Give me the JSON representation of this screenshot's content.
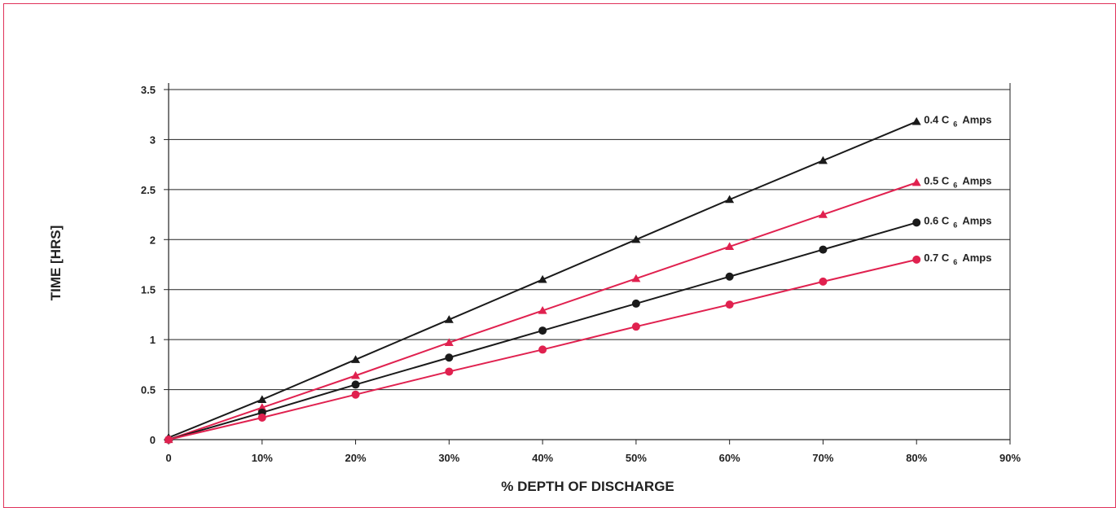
{
  "chart_data": {
    "type": "line",
    "title": "",
    "xlabel": "% DEPTH OF DISCHARGE",
    "ylabel": "TIME [HRS]",
    "x_ticks": [
      "0",
      "10%",
      "20%",
      "30%",
      "40%",
      "50%",
      "60%",
      "70%",
      "80%",
      "90%"
    ],
    "x_tick_values": [
      0,
      10,
      20,
      30,
      40,
      50,
      60,
      70,
      80,
      90
    ],
    "y_ticks": [
      "0",
      "0.5",
      "1",
      "1.5",
      "2",
      "2.5",
      "3",
      "3.5"
    ],
    "y_tick_values": [
      0,
      0.5,
      1,
      1.5,
      2,
      2.5,
      3,
      3.5
    ],
    "xlim": [
      0,
      90
    ],
    "ylim": [
      0,
      3.5
    ],
    "grid": "horizontal",
    "x": [
      0,
      10,
      20,
      30,
      40,
      50,
      60,
      70,
      80
    ],
    "series": [
      {
        "name": "0.4 C 6 Amps",
        "label_main": "0.4 C",
        "label_sub": "6",
        "label_tail": "Amps",
        "color": "#1a1a1a",
        "marker": "triangle",
        "values": [
          0.02,
          0.4,
          0.8,
          1.2,
          1.6,
          2.0,
          2.4,
          2.79,
          3.18
        ]
      },
      {
        "name": "0.5 C 6 Amps",
        "label_main": "0.5 C",
        "label_sub": "6",
        "label_tail": "Amps",
        "color": "#e0214f",
        "marker": "triangle",
        "values": [
          0.0,
          0.32,
          0.64,
          0.97,
          1.29,
          1.61,
          1.93,
          2.25,
          2.57
        ]
      },
      {
        "name": "0.6 C 6 Amps",
        "label_main": "0.6 C",
        "label_sub": "6",
        "label_tail": "Amps",
        "color": "#1a1a1a",
        "marker": "circle",
        "values": [
          0.0,
          0.27,
          0.55,
          0.82,
          1.09,
          1.36,
          1.63,
          1.9,
          2.17
        ]
      },
      {
        "name": "0.7 C 6 Amps",
        "label_main": "0.7 C",
        "label_sub": "6",
        "label_tail": "Amps",
        "color": "#e0214f",
        "marker": "circle",
        "values": [
          0.0,
          0.22,
          0.45,
          0.68,
          0.9,
          1.13,
          1.35,
          1.58,
          1.8
        ]
      }
    ]
  }
}
